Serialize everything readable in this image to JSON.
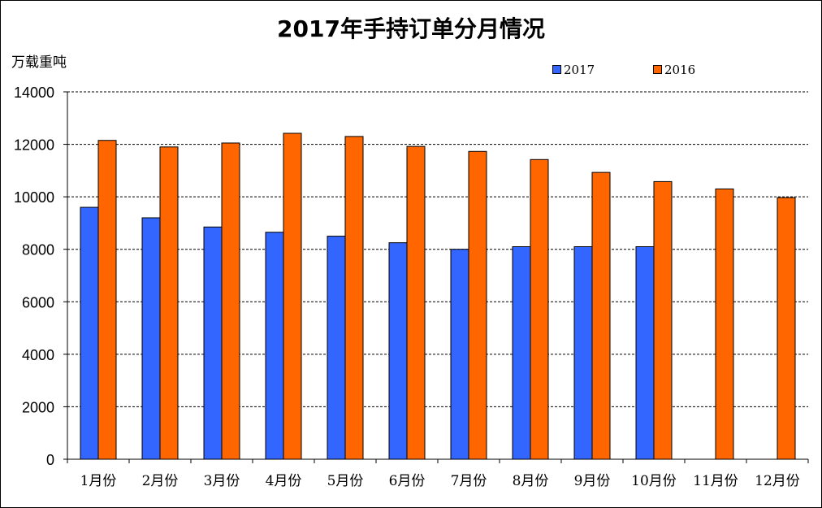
{
  "chart_data": {
    "type": "bar",
    "title": "2017年手持订单分月情况",
    "ylabel": "万载重吨",
    "xlabel": "",
    "categories": [
      "1月份",
      "2月份",
      "3月份",
      "4月份",
      "5月份",
      "6月份",
      "7月份",
      "8月份",
      "9月份",
      "10月份",
      "11月份",
      "12月份"
    ],
    "series": [
      {
        "name": "2017",
        "color": "#3366FF",
        "values": [
          9600,
          9200,
          8850,
          8650,
          8500,
          8250,
          8000,
          8100,
          8100,
          8100,
          null,
          null
        ]
      },
      {
        "name": "2016",
        "color": "#FF6600",
        "values": [
          12150,
          11900,
          12050,
          12420,
          12300,
          11920,
          11730,
          11420,
          10930,
          10580,
          10300,
          9970
        ]
      }
    ],
    "ylim": [
      0,
      14000
    ],
    "yticks": [
      0,
      2000,
      4000,
      6000,
      8000,
      10000,
      12000,
      14000
    ],
    "grid": "horizontal-dashed",
    "legend_position": "top"
  }
}
